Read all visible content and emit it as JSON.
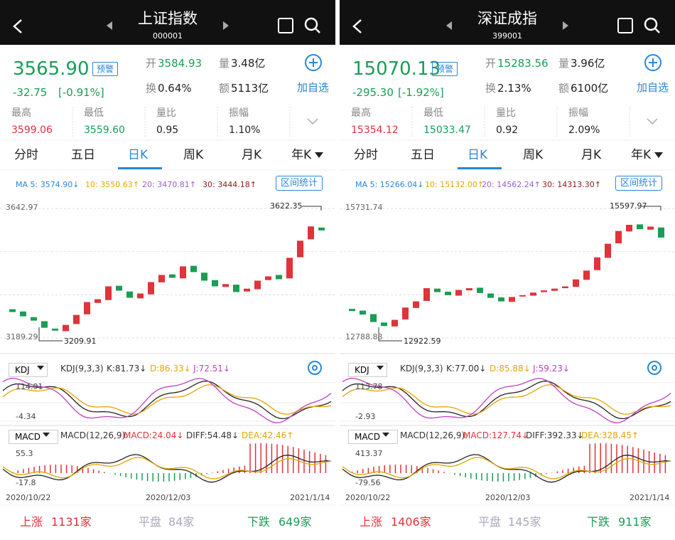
{
  "panels": [
    {
      "title": "上证指数",
      "code": "000001",
      "price": "3565.90",
      "alert": "预警",
      "change": "-32.75",
      "change_pct": "[-0.91%]",
      "open_label": "开",
      "open": "3584.93",
      "vol_label": "量",
      "vol": "3.48亿",
      "turn_label": "换",
      "turn": "0.64%",
      "amt_label": "额",
      "amt": "5113亿",
      "add_label": "加自选",
      "high_label": "最高",
      "high": "3599.06",
      "low_label": "最低",
      "low": "3559.60",
      "ratio_label": "量比",
      "ratio": "0.95",
      "amp_label": "振幅",
      "amp": "1.10%",
      "tabs": [
        "分时",
        "五日",
        "日K",
        "周K",
        "月K",
        "年K"
      ],
      "ma": [
        "MA 5: 3574.90↓",
        "10: 3550.63↑",
        "20: 3470.81↑",
        "30: 3444.18↑"
      ],
      "stat_button": "区间统计",
      "ylim": [
        3189.29,
        3642.97
      ],
      "max_label": "3622.35",
      "min_label": "3209.91",
      "candles": {
        "open": [
          3290,
          3282,
          3262,
          3248,
          3222,
          3213,
          3238,
          3272,
          3312,
          3322,
          3372,
          3352,
          3328,
          3342,
          3384,
          3412,
          3398,
          3442,
          3418,
          3392,
          3368,
          3376,
          3352,
          3360,
          3392,
          3410,
          3398,
          3472,
          3535,
          3576
        ],
        "close": [
          3280,
          3265,
          3250,
          3225,
          3215,
          3235,
          3270,
          3315,
          3325,
          3370,
          3355,
          3330,
          3345,
          3385,
          3410,
          3400,
          3440,
          3420,
          3390,
          3370,
          3378,
          3350,
          3362,
          3390,
          3405,
          3395,
          3470,
          3530,
          3580,
          3565.9
        ]
      },
      "kdj_button": "KDJ",
      "kdj_params": "KDJ(9,3,3)",
      "kdj_k": "K:81.73↓",
      "kdj_d": "D:86.33↓",
      "kdj_j": "J:72.51↓",
      "kdj_top": "114.91",
      "kdj_bottom": "-4.34",
      "macd_button": "MACD",
      "macd_params": "MACD(12,26,9):",
      "macd": "MACD:24.04↓",
      "diff": "DIFF:54.48↓",
      "dea": "DEA:42.46↑",
      "macd_top": "55.3",
      "macd_bottom": "-17.8",
      "dates": [
        "2020/10/22",
        "2020/12/03",
        "2021/1/14"
      ],
      "up_label": "上涨",
      "up": "1131家",
      "flat_label": "平盘",
      "flat": "84家",
      "down_label": "下跌",
      "down": "649家"
    },
    {
      "title": "深证成指",
      "code": "399001",
      "price": "15070.13",
      "alert": "预警",
      "change": "-295.30",
      "change_pct": "[-1.92%]",
      "open_label": "开",
      "open": "15283.56",
      "vol_label": "量",
      "vol": "3.96亿",
      "turn_label": "换",
      "turn": "2.13%",
      "amt_label": "额",
      "amt": "6100亿",
      "add_label": "加自选",
      "high_label": "最高",
      "high": "15354.12",
      "low_label": "最低",
      "low": "15033.47",
      "ratio_label": "量比",
      "ratio": "0.92",
      "amp_label": "振幅",
      "amp": "2.09%",
      "tabs": [
        "分时",
        "五日",
        "日K",
        "周K",
        "月K",
        "年K"
      ],
      "ma": [
        "MA 5: 15266.04↓",
        "10: 15132.00↑",
        "20: 14562.24↑",
        "30: 14313.30↑"
      ],
      "stat_button": "区间统计",
      "ylim": [
        12788.83,
        15731.74
      ],
      "max_label": "15597.97",
      "min_label": "12922.59",
      "candles": {
        "open": [
          13450,
          13410,
          13330,
          13140,
          13050,
          13210,
          13470,
          13630,
          13910,
          13840,
          13750,
          13870,
          13930,
          13800,
          13710,
          13610,
          13730,
          13750,
          13830,
          13860,
          13920,
          13950,
          14110,
          14330,
          14610,
          14940,
          15210,
          15370,
          15250,
          15300
        ],
        "close": [
          13400,
          13320,
          13150,
          13060,
          13200,
          13480,
          13620,
          13920,
          13830,
          13760,
          13880,
          13920,
          13810,
          13700,
          13620,
          13720,
          13760,
          13820,
          13870,
          13910,
          13960,
          14120,
          14320,
          14620,
          14930,
          15220,
          15360,
          15260,
          15320,
          15070.13
        ]
      },
      "kdj_button": "KDJ",
      "kdj_params": "KDJ(9,3,3)",
      "kdj_k": "K:77.00↓",
      "kdj_d": "D:85.88↓",
      "kdj_j": "J:59.23↓",
      "kdj_top": "113.78",
      "kdj_bottom": "-2.93",
      "macd_button": "MACD",
      "macd_params": "MACD(12,26,9):",
      "macd": "MACD:127.74↓",
      "diff": "DIFF:392.33↓",
      "dea": "DEA:328.45↑",
      "macd_top": "413.37",
      "macd_bottom": "-79.56",
      "dates": [
        "2020/10/22",
        "2020/12/03",
        "2021/1/14"
      ],
      "up_label": "上涨",
      "up": "1406家",
      "flat_label": "平盘",
      "flat": "145家",
      "down_label": "下跌",
      "down": "911家"
    }
  ]
}
